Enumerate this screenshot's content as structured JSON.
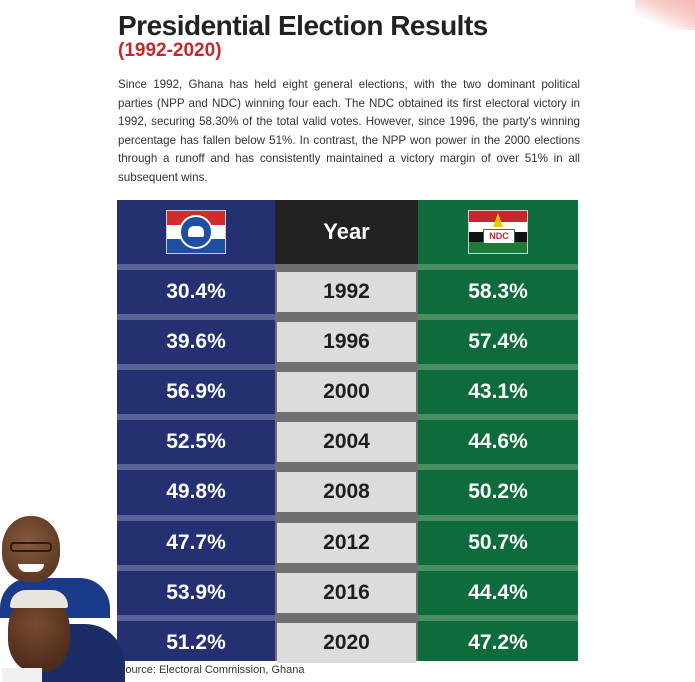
{
  "title": "Presidential Election Results",
  "subtitle": "(1992-2020)",
  "intro": "Since 1992, Ghana has held eight general elections, with the two dominant political parties (NPP and NDC) winning four each. The NDC obtained its first electoral victory in 1992, securing 58.30% of the total valid votes. However, since 1996, the party's winning percentage has fallen below 51%. In contrast, the NPP won power in the 2000 elections through a runoff and has consistently maintained a victory margin of over 51% in all subsequent wins.",
  "year_header": "Year",
  "ndc_logo_text": "NDC",
  "source": "Source: Electoral Commission, Ghana",
  "colors": {
    "npp": "#243071",
    "year": "#dcdcdc",
    "ndc": "#0d6b3c",
    "subtitle": "#c8262f"
  },
  "chart_data": {
    "type": "table",
    "columns": [
      "NPP",
      "Year",
      "NDC"
    ],
    "rows": [
      {
        "npp": "30.4%",
        "year": "1992",
        "ndc": "58.3%"
      },
      {
        "npp": "39.6%",
        "year": "1996",
        "ndc": "57.4%"
      },
      {
        "npp": "56.9%",
        "year": "2000",
        "ndc": "43.1%"
      },
      {
        "npp": "52.5%",
        "year": "2004",
        "ndc": "44.6%"
      },
      {
        "npp": "49.8%",
        "year": "2008",
        "ndc": "50.2%"
      },
      {
        "npp": "47.7%",
        "year": "2012",
        "ndc": "50.7%"
      },
      {
        "npp": "53.9%",
        "year": "2016",
        "ndc": "44.4%"
      },
      {
        "npp": "51.2%",
        "year": "2020",
        "ndc": "47.2%"
      }
    ]
  }
}
